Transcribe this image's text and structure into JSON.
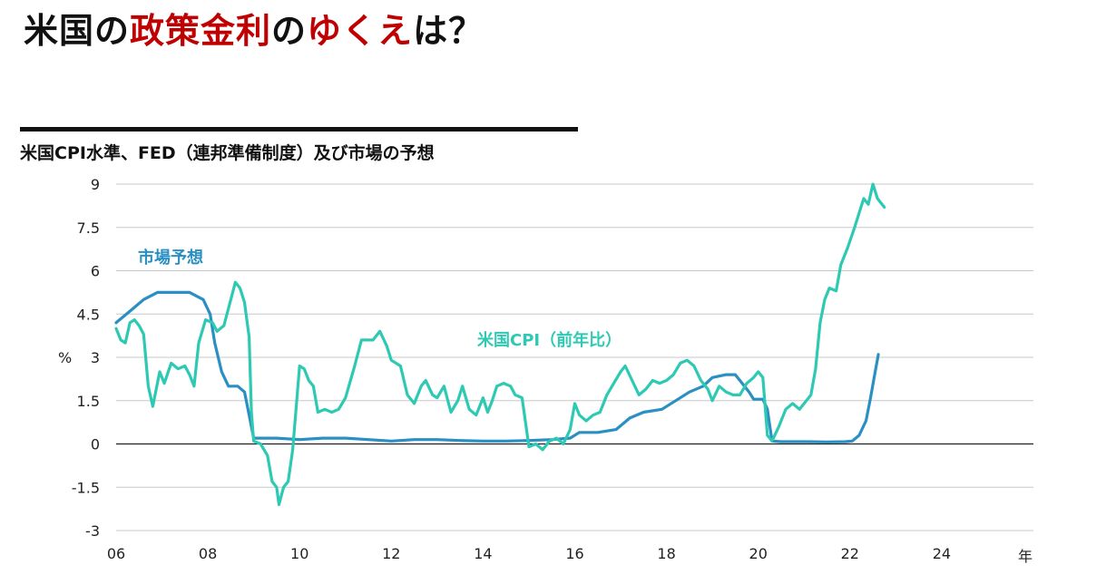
{
  "headline": {
    "part1": "米国の",
    "part2": "政策金利",
    "part3": "の",
    "part4": "ゆくえ",
    "part5": "は？"
  },
  "colors": {
    "accent_red": "#c00000",
    "cpi": "#2ec9b3",
    "market": "#2a8fc2",
    "grid": "#c8c8c8",
    "zero": "#222222"
  },
  "chart_data": {
    "type": "line",
    "title": "米国CPI水準、FED（連邦準備制度）及び市場の予想",
    "xlabel": "年",
    "ylabel": "%",
    "xlim": [
      2006,
      2026
    ],
    "ylim": [
      -3,
      9
    ],
    "x_ticks": [
      "06",
      "08",
      "10",
      "12",
      "14",
      "16",
      "18",
      "20",
      "22",
      "24"
    ],
    "y_ticks": [
      "-3",
      "-1.5",
      "0",
      "1.5",
      "3",
      "4.5",
      "6",
      "7.5",
      "9"
    ],
    "grid": true,
    "series": [
      {
        "name": "市場予想",
        "color": "#2a8fc2",
        "points": [
          [
            2006.0,
            4.2
          ],
          [
            2006.3,
            4.6
          ],
          [
            2006.6,
            5.0
          ],
          [
            2006.9,
            5.25
          ],
          [
            2007.3,
            5.25
          ],
          [
            2007.6,
            5.25
          ],
          [
            2007.9,
            5.0
          ],
          [
            2008.05,
            4.5
          ],
          [
            2008.15,
            3.5
          ],
          [
            2008.3,
            2.5
          ],
          [
            2008.45,
            2.0
          ],
          [
            2008.65,
            2.0
          ],
          [
            2008.8,
            1.8
          ],
          [
            2008.9,
            1.0
          ],
          [
            2009.0,
            0.2
          ],
          [
            2009.5,
            0.2
          ],
          [
            2010.0,
            0.15
          ],
          [
            2010.5,
            0.2
          ],
          [
            2011.0,
            0.2
          ],
          [
            2011.5,
            0.15
          ],
          [
            2012.0,
            0.1
          ],
          [
            2012.5,
            0.15
          ],
          [
            2013.0,
            0.15
          ],
          [
            2013.5,
            0.12
          ],
          [
            2014.0,
            0.1
          ],
          [
            2014.5,
            0.1
          ],
          [
            2015.0,
            0.12
          ],
          [
            2015.5,
            0.15
          ],
          [
            2015.9,
            0.2
          ],
          [
            2016.1,
            0.4
          ],
          [
            2016.5,
            0.4
          ],
          [
            2016.9,
            0.5
          ],
          [
            2017.2,
            0.9
          ],
          [
            2017.5,
            1.1
          ],
          [
            2017.9,
            1.2
          ],
          [
            2018.2,
            1.5
          ],
          [
            2018.5,
            1.8
          ],
          [
            2018.8,
            2.0
          ],
          [
            2019.0,
            2.3
          ],
          [
            2019.3,
            2.4
          ],
          [
            2019.5,
            2.4
          ],
          [
            2019.6,
            2.2
          ],
          [
            2019.8,
            1.8
          ],
          [
            2019.9,
            1.55
          ],
          [
            2020.1,
            1.55
          ],
          [
            2020.2,
            1.2
          ],
          [
            2020.3,
            0.1
          ],
          [
            2020.5,
            0.08
          ],
          [
            2021.0,
            0.08
          ],
          [
            2021.5,
            0.07
          ],
          [
            2021.9,
            0.08
          ],
          [
            2022.05,
            0.1
          ],
          [
            2022.2,
            0.3
          ],
          [
            2022.35,
            0.8
          ],
          [
            2022.45,
            1.6
          ],
          [
            2022.55,
            2.5
          ],
          [
            2022.62,
            3.1
          ]
        ]
      },
      {
        "name": "米国CPI（前年比）",
        "color": "#2ec9b3",
        "points": [
          [
            2006.0,
            4.0
          ],
          [
            2006.1,
            3.6
          ],
          [
            2006.2,
            3.5
          ],
          [
            2006.3,
            4.2
          ],
          [
            2006.4,
            4.3
          ],
          [
            2006.5,
            4.1
          ],
          [
            2006.6,
            3.8
          ],
          [
            2006.7,
            2.0
          ],
          [
            2006.8,
            1.3
          ],
          [
            2006.95,
            2.5
          ],
          [
            2007.05,
            2.1
          ],
          [
            2007.2,
            2.8
          ],
          [
            2007.35,
            2.6
          ],
          [
            2007.5,
            2.7
          ],
          [
            2007.6,
            2.4
          ],
          [
            2007.7,
            2.0
          ],
          [
            2007.8,
            3.5
          ],
          [
            2007.95,
            4.3
          ],
          [
            2008.1,
            4.2
          ],
          [
            2008.2,
            3.9
          ],
          [
            2008.35,
            4.1
          ],
          [
            2008.5,
            5.0
          ],
          [
            2008.6,
            5.6
          ],
          [
            2008.7,
            5.4
          ],
          [
            2008.8,
            4.9
          ],
          [
            2008.9,
            3.7
          ],
          [
            2008.95,
            1.1
          ],
          [
            2009.0,
            0.1
          ],
          [
            2009.15,
            0.0
          ],
          [
            2009.3,
            -0.4
          ],
          [
            2009.4,
            -1.3
          ],
          [
            2009.5,
            -1.5
          ],
          [
            2009.55,
            -2.1
          ],
          [
            2009.65,
            -1.5
          ],
          [
            2009.75,
            -1.3
          ],
          [
            2009.85,
            -0.2
          ],
          [
            2010.0,
            2.7
          ],
          [
            2010.1,
            2.6
          ],
          [
            2010.2,
            2.2
          ],
          [
            2010.3,
            2.0
          ],
          [
            2010.4,
            1.1
          ],
          [
            2010.55,
            1.2
          ],
          [
            2010.7,
            1.1
          ],
          [
            2010.85,
            1.2
          ],
          [
            2011.0,
            1.6
          ],
          [
            2011.2,
            2.7
          ],
          [
            2011.35,
            3.6
          ],
          [
            2011.6,
            3.6
          ],
          [
            2011.75,
            3.9
          ],
          [
            2011.9,
            3.4
          ],
          [
            2012.0,
            2.9
          ],
          [
            2012.2,
            2.7
          ],
          [
            2012.35,
            1.7
          ],
          [
            2012.5,
            1.4
          ],
          [
            2012.65,
            2.0
          ],
          [
            2012.75,
            2.2
          ],
          [
            2012.9,
            1.7
          ],
          [
            2013.0,
            1.6
          ],
          [
            2013.15,
            2.0
          ],
          [
            2013.3,
            1.1
          ],
          [
            2013.45,
            1.5
          ],
          [
            2013.55,
            2.0
          ],
          [
            2013.7,
            1.2
          ],
          [
            2013.85,
            1.0
          ],
          [
            2014.0,
            1.6
          ],
          [
            2014.1,
            1.1
          ],
          [
            2014.2,
            1.5
          ],
          [
            2014.3,
            2.0
          ],
          [
            2014.45,
            2.1
          ],
          [
            2014.6,
            2.0
          ],
          [
            2014.7,
            1.7
          ],
          [
            2014.85,
            1.6
          ],
          [
            2015.0,
            -0.1
          ],
          [
            2015.15,
            0.0
          ],
          [
            2015.3,
            -0.2
          ],
          [
            2015.45,
            0.1
          ],
          [
            2015.6,
            0.2
          ],
          [
            2015.75,
            0.0
          ],
          [
            2015.9,
            0.5
          ],
          [
            2016.0,
            1.4
          ],
          [
            2016.1,
            1.0
          ],
          [
            2016.25,
            0.8
          ],
          [
            2016.4,
            1.0
          ],
          [
            2016.55,
            1.1
          ],
          [
            2016.7,
            1.7
          ],
          [
            2016.85,
            2.1
          ],
          [
            2017.0,
            2.5
          ],
          [
            2017.1,
            2.7
          ],
          [
            2017.25,
            2.2
          ],
          [
            2017.4,
            1.7
          ],
          [
            2017.55,
            1.9
          ],
          [
            2017.7,
            2.2
          ],
          [
            2017.85,
            2.1
          ],
          [
            2018.0,
            2.2
          ],
          [
            2018.15,
            2.4
          ],
          [
            2018.3,
            2.8
          ],
          [
            2018.45,
            2.9
          ],
          [
            2018.6,
            2.7
          ],
          [
            2018.75,
            2.2
          ],
          [
            2018.9,
            1.9
          ],
          [
            2019.0,
            1.5
          ],
          [
            2019.15,
            2.0
          ],
          [
            2019.3,
            1.8
          ],
          [
            2019.45,
            1.7
          ],
          [
            2019.6,
            1.7
          ],
          [
            2019.75,
            2.1
          ],
          [
            2019.9,
            2.3
          ],
          [
            2020.0,
            2.5
          ],
          [
            2020.1,
            2.3
          ],
          [
            2020.2,
            0.3
          ],
          [
            2020.3,
            0.1
          ],
          [
            2020.45,
            0.6
          ],
          [
            2020.6,
            1.2
          ],
          [
            2020.75,
            1.4
          ],
          [
            2020.9,
            1.2
          ],
          [
            2021.0,
            1.4
          ],
          [
            2021.15,
            1.7
          ],
          [
            2021.25,
            2.6
          ],
          [
            2021.35,
            4.2
          ],
          [
            2021.45,
            5.0
          ],
          [
            2021.55,
            5.4
          ],
          [
            2021.7,
            5.3
          ],
          [
            2021.8,
            6.2
          ],
          [
            2021.95,
            6.8
          ],
          [
            2022.1,
            7.5
          ],
          [
            2022.2,
            8.0
          ],
          [
            2022.3,
            8.5
          ],
          [
            2022.4,
            8.3
          ],
          [
            2022.5,
            9.0
          ],
          [
            2022.6,
            8.5
          ],
          [
            2022.75,
            8.2
          ]
        ]
      }
    ],
    "annotations": [
      {
        "text": "市場予想",
        "series": "market"
      },
      {
        "text": "米国CPI（前年比）",
        "series": "cpi"
      }
    ]
  }
}
